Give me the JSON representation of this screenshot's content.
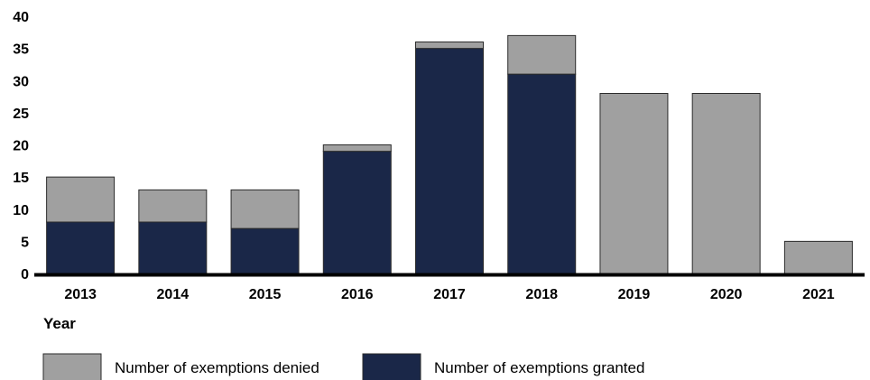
{
  "chart_data": {
    "type": "bar",
    "stacked": true,
    "categories": [
      "2013",
      "2014",
      "2015",
      "2016",
      "2017",
      "2018",
      "2019",
      "2020",
      "2021"
    ],
    "series": [
      {
        "name": "Number of exemptions granted",
        "values": [
          8,
          8,
          7,
          19,
          35,
          31,
          0,
          0,
          0
        ],
        "color": "#1a2748"
      },
      {
        "name": "Number of exemptions denied",
        "values": [
          7,
          5,
          6,
          1,
          1,
          6,
          28,
          28,
          5
        ],
        "color": "#a0a0a0"
      }
    ],
    "y_ticks": [
      0,
      5,
      10,
      15,
      20,
      25,
      30,
      35,
      40
    ],
    "ylim": [
      0,
      40
    ],
    "xlabel": "Year",
    "ylabel": "",
    "title": "",
    "grid": false,
    "legend": {
      "position": "bottom-left",
      "order": [
        "Number of exemptions denied",
        "Number of exemptions granted"
      ]
    }
  }
}
